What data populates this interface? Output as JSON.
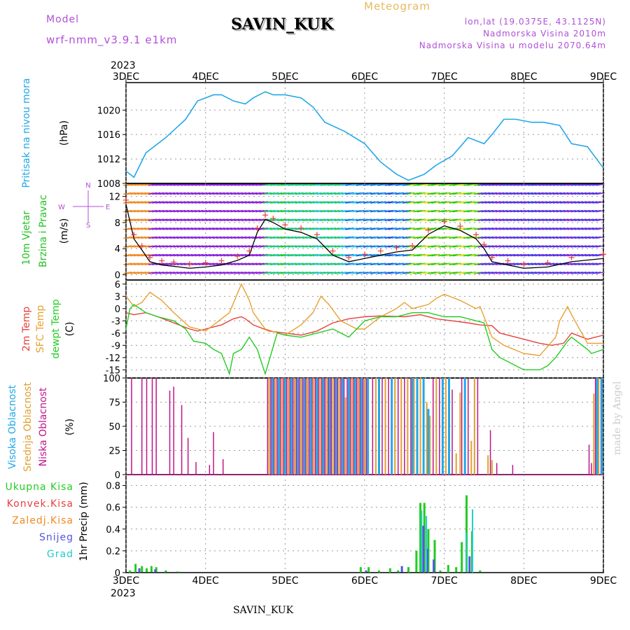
{
  "header": {
    "model_label": "Model",
    "model_name": "wrf-nmm_v3.9.1  e1km",
    "meteogram_label": "Meteogram",
    "station": "SAVIN_KUK",
    "lonlat": "lon,lat (19.0375E, 43.1125N)",
    "elevation": "Nadmorska Visina 2010m",
    "model_elevation": "Nadmorska Visina u modelu 2070.64m",
    "year": "2023"
  },
  "footer": {
    "station": "SAVIN_KUK",
    "credit": "made by Angel"
  },
  "colors": {
    "pressure": "#22a8e8",
    "wind_label": "#22c322",
    "temp2m": "#e8403a",
    "sfc": "#e8a030",
    "dew": "#22cc22",
    "high_cloud": "#22a8e8",
    "mid_cloud": "#e0a030",
    "low_cloud": "#c0158a",
    "model_label": "#b050d8",
    "meteogram_label": "#e8b860",
    "barb_purple": "#8a22d8",
    "barb_blue": "#2a44e8",
    "barb_cyan": "#22c8e0",
    "barb_green": "#22c822",
    "barb_yellow": "#e0e022",
    "barb_orange": "#f08a22",
    "snow": "#5555dd",
    "graupel": "#22cccc",
    "conv": "#e84040",
    "frz": "#f08a22",
    "credit": "#cccccc"
  },
  "chart_data": [
    {
      "type": "line",
      "panel": "pressure",
      "title": "",
      "ylabel_lines": [
        "Pritisak na nivou mora",
        "(hPa)"
      ],
      "x_ticks": [
        "3DEC",
        "4DEC",
        "5DEC",
        "6DEC",
        "7DEC",
        "8DEC",
        "9DEC"
      ],
      "x_range_days": [
        3,
        9
      ],
      "y_ticks": [
        "1008",
        "1012",
        "1016",
        "1020"
      ],
      "ylim": [
        1008,
        1024.5
      ],
      "grid": true,
      "series": [
        {
          "x": [
            3.0,
            3.1,
            3.25,
            3.5,
            3.75,
            3.9,
            4.0,
            4.1,
            4.2,
            4.35,
            4.5,
            4.6,
            4.75,
            4.85,
            5.0,
            5.2,
            5.35,
            5.5,
            5.75,
            6.0,
            6.2,
            6.4,
            6.55,
            6.75,
            6.9,
            7.1,
            7.3,
            7.5,
            7.6,
            7.75,
            7.9,
            8.1,
            8.25,
            8.45,
            8.6,
            8.8,
            9.0
          ],
          "y": [
            1010,
            1009,
            1013,
            1015.5,
            1018.5,
            1021.5,
            1022,
            1022.5,
            1022.5,
            1021.5,
            1021,
            1022,
            1023,
            1022.5,
            1022.5,
            1022,
            1020.5,
            1018,
            1016.5,
            1014.5,
            1011.5,
            1009.5,
            1008.5,
            1009.5,
            1011,
            1012.5,
            1015.5,
            1014.5,
            1016,
            1018.5,
            1018.5,
            1018,
            1018,
            1017.5,
            1014.5,
            1014,
            1010.5
          ]
        }
      ]
    },
    {
      "type": "line",
      "panel": "wind",
      "ylabel_lines": [
        "10m Vjetar",
        "Brzina i Pravac",
        "(m/s)"
      ],
      "compass": {
        "north": "N",
        "west": "W",
        "east": "E",
        "south": "S"
      },
      "y_ticks": [
        "0",
        "4",
        "8",
        "12"
      ],
      "ylim": [
        -0.8,
        14
      ],
      "series": [
        {
          "name": "speed",
          "x": [
            3.0,
            3.1,
            3.2,
            3.3,
            3.45,
            3.6,
            3.8,
            4.0,
            4.2,
            4.4,
            4.55,
            4.65,
            4.75,
            4.85,
            5.0,
            5.2,
            5.4,
            5.6,
            5.8,
            6.0,
            6.2,
            6.4,
            6.6,
            6.8,
            7.0,
            7.2,
            7.4,
            7.5,
            7.6,
            7.8,
            8.0,
            8.3,
            8.6,
            9.0
          ],
          "y": [
            10.8,
            5.5,
            3.8,
            2.0,
            1.5,
            1.3,
            1.0,
            1.2,
            1.5,
            2.2,
            3.0,
            6.5,
            8.5,
            8.0,
            7.0,
            6.5,
            5.5,
            3.0,
            2.0,
            2.5,
            3.0,
            3.5,
            3.8,
            6.2,
            7.5,
            6.8,
            5.5,
            4.0,
            2.0,
            1.5,
            1.0,
            1.2,
            2.0,
            2.5
          ]
        }
      ]
    },
    {
      "type": "line",
      "panel": "temperature",
      "ylabel_lines": [
        "2m Temp",
        "SFC Temp",
        "dewpt Temp",
        "(C)"
      ],
      "y_ticks": [
        "6",
        "3",
        "0",
        "-3",
        "-6",
        "-9",
        "-12",
        "-15"
      ],
      "ylim": [
        -17,
        7
      ],
      "series": [
        {
          "name": "2m Temp",
          "x": [
            3.0,
            3.1,
            3.25,
            3.4,
            3.6,
            3.8,
            3.9,
            4.0,
            4.1,
            4.2,
            4.35,
            4.45,
            4.5,
            4.6,
            4.8,
            5.0,
            5.2,
            5.4,
            5.6,
            5.8,
            6.0,
            6.2,
            6.5,
            6.7,
            6.9,
            7.1,
            7.3,
            7.45,
            7.6,
            7.7,
            7.9,
            8.0,
            8.2,
            8.35,
            8.5,
            8.6,
            8.8,
            9.0
          ],
          "y": [
            -1.0,
            -1.5,
            -1.0,
            -2.0,
            -3.5,
            -5.0,
            -5.5,
            -5.0,
            -4.5,
            -4.0,
            -2.5,
            -2.0,
            -2.5,
            -4.0,
            -5.5,
            -6.0,
            -6.5,
            -5.5,
            -3.5,
            -2.5,
            -2.0,
            -1.8,
            -2.0,
            -1.5,
            -2.5,
            -3.0,
            -3.5,
            -4.0,
            -4.2,
            -6.0,
            -7.0,
            -7.5,
            -8.5,
            -9.0,
            -8.5,
            -6.0,
            -7.5,
            -6.5
          ]
        },
        {
          "name": "SFC Temp",
          "x": [
            3.0,
            3.1,
            3.2,
            3.3,
            3.45,
            3.6,
            3.8,
            4.0,
            4.1,
            4.2,
            4.3,
            4.45,
            4.55,
            4.6,
            4.75,
            5.0,
            5.2,
            5.35,
            5.45,
            5.55,
            5.7,
            5.9,
            6.0,
            6.2,
            6.4,
            6.5,
            6.6,
            6.8,
            6.9,
            7.0,
            7.2,
            7.4,
            7.45,
            7.5,
            7.6,
            7.75,
            8.0,
            8.2,
            8.4,
            8.45,
            8.55,
            8.6,
            8.8,
            9.0
          ],
          "y": [
            3.0,
            0.5,
            1.5,
            4.0,
            2.0,
            -1.0,
            -4.5,
            -5.5,
            -4.0,
            -2.5,
            -1.0,
            6.0,
            2.0,
            -1.0,
            -5.0,
            -6.5,
            -4.0,
            -1.0,
            3.0,
            1.0,
            -3.0,
            -5.0,
            -5.0,
            -2.0,
            0.0,
            1.5,
            0.0,
            1.0,
            2.5,
            3.5,
            2.0,
            0.0,
            0.5,
            -2.0,
            -7.0,
            -9.0,
            -11.0,
            -11.5,
            -7.0,
            -3.0,
            0.5,
            -1.5,
            -8.5,
            -8.5
          ]
        },
        {
          "name": "dewpt Temp",
          "x": [
            3.0,
            3.05,
            3.1,
            3.25,
            3.4,
            3.6,
            3.75,
            3.85,
            4.0,
            4.1,
            4.2,
            4.3,
            4.35,
            4.45,
            4.55,
            4.65,
            4.75,
            4.9,
            5.0,
            5.2,
            5.4,
            5.6,
            5.8,
            6.0,
            6.2,
            6.4,
            6.6,
            6.8,
            7.0,
            7.2,
            7.4,
            7.5,
            7.6,
            7.7,
            7.9,
            8.0,
            8.2,
            8.3,
            8.4,
            8.55,
            8.6,
            8.8,
            8.85,
            9.0
          ],
          "y": [
            -5.0,
            0.0,
            1.0,
            -1.0,
            -2.0,
            -3.0,
            -5.0,
            -8.0,
            -8.5,
            -10.0,
            -11.0,
            -16.0,
            -11.0,
            -10.0,
            -7.0,
            -10.0,
            -16.0,
            -6.0,
            -6.5,
            -7.0,
            -6.0,
            -5.0,
            -7.0,
            -3.0,
            -2.0,
            -2.0,
            -1.0,
            -1.0,
            -2.0,
            -2.0,
            -3.0,
            -3.5,
            -10.0,
            -12.0,
            -14.0,
            -15.0,
            -15.0,
            -14.0,
            -12.0,
            -8.0,
            -7.0,
            -10.0,
            -11.0,
            -10.0
          ]
        }
      ]
    },
    {
      "type": "bar",
      "panel": "clouds",
      "ylabel_lines": [
        "Visoka Oblacnost",
        "Srednja Oblacnost",
        "Niska Oblacnost",
        "(%)"
      ],
      "y_ticks": [
        "0",
        "25",
        "50",
        "75",
        "100"
      ],
      "ylim": [
        0,
        100
      ],
      "series": [
        {
          "name": "Niska Oblacnost",
          "x": [
            3.07,
            3.2,
            3.26,
            3.33,
            3.38,
            3.55,
            3.6,
            3.7,
            3.78,
            3.88,
            4.05,
            4.1,
            4.22,
            4.78,
            4.82,
            4.86,
            4.9,
            4.94,
            4.98,
            5.02,
            5.06,
            5.1,
            5.14,
            5.18,
            5.22,
            5.26,
            5.3,
            5.34,
            5.38,
            5.42,
            5.46,
            5.5,
            5.54,
            5.58,
            5.62,
            5.66,
            5.7,
            5.74,
            5.78,
            5.82,
            5.86,
            5.9,
            5.94,
            5.98,
            6.02,
            6.1,
            6.22,
            6.3,
            6.42,
            6.5,
            6.58,
            6.66,
            6.74,
            6.86,
            6.94,
            7.1,
            7.22,
            7.3,
            7.42,
            7.58,
            7.66,
            7.86,
            8.82,
            8.85,
            8.9,
            8.97
          ],
          "y": [
            100,
            100,
            100,
            100,
            100,
            87,
            91,
            72,
            38,
            13,
            10,
            44,
            16,
            100,
            100,
            100,
            100,
            100,
            100,
            100,
            100,
            100,
            100,
            100,
            100,
            100,
            100,
            100,
            100,
            100,
            100,
            100,
            100,
            100,
            100,
            100,
            100,
            100,
            100,
            100,
            100,
            100,
            100,
            100,
            100,
            100,
            100,
            100,
            100,
            100,
            100,
            100,
            100,
            100,
            100,
            88,
            100,
            100,
            100,
            46,
            12,
            10,
            31,
            12,
            100,
            100
          ]
        },
        {
          "name": "Srednja Oblacnost",
          "x": [
            4.8,
            4.88,
            4.96,
            5.04,
            5.12,
            5.2,
            5.28,
            5.36,
            5.44,
            5.52,
            5.6,
            5.68,
            5.76,
            5.84,
            5.92,
            6.0,
            6.14,
            6.26,
            6.38,
            6.46,
            6.54,
            6.62,
            6.7,
            6.78,
            6.82,
            6.9,
            7.02,
            7.15,
            7.2,
            7.34,
            7.38,
            7.55,
            7.6,
            8.88,
            8.94
          ],
          "y": [
            100,
            100,
            100,
            100,
            100,
            100,
            100,
            100,
            100,
            100,
            100,
            100,
            80,
            100,
            100,
            100,
            100,
            100,
            100,
            100,
            100,
            100,
            100,
            75,
            61,
            100,
            100,
            22,
            85,
            35,
            100,
            20,
            15,
            84,
            100
          ]
        },
        {
          "name": "Visoka Oblacnost",
          "x": [
            4.84,
            4.92,
            5.0,
            5.08,
            5.16,
            5.24,
            5.32,
            5.4,
            5.48,
            5.56,
            5.64,
            5.72,
            5.8,
            5.88,
            5.96,
            6.04,
            6.18,
            6.34,
            6.6,
            6.66,
            6.74,
            6.8,
            6.98,
            7.06,
            7.26,
            8.92,
            8.98
          ],
          "y": [
            100,
            100,
            100,
            100,
            100,
            100,
            100,
            100,
            100,
            100,
            100,
            100,
            100,
            100,
            100,
            100,
            100,
            100,
            100,
            100,
            100,
            68,
            100,
            100,
            100,
            100,
            100
          ]
        }
      ]
    },
    {
      "type": "bar",
      "panel": "precip",
      "ylabel_lines": [
        "1hr Precip (mm)"
      ],
      "legend_labels": [
        "Ukupna Kisa",
        "Konvek.Kisa",
        "Zaledj.Kisa",
        "Snijeg",
        "Grad"
      ],
      "x_ticks": [
        "3DEC",
        "4DEC",
        "5DEC",
        "6DEC",
        "7DEC",
        "8DEC",
        "9DEC"
      ],
      "y_ticks": [
        "0",
        "0.2",
        "0.4",
        "0.6",
        "0.8"
      ],
      "ylim": [
        0,
        0.9
      ],
      "series": [
        {
          "name": "Ukupna Kisa",
          "x": [
            3.05,
            3.12,
            3.2,
            3.26,
            3.32,
            3.38,
            3.5,
            3.65,
            5.95,
            6.05,
            6.18,
            6.32,
            6.42,
            6.55,
            6.65,
            6.7,
            6.75,
            6.8,
            6.88,
            6.95,
            7.05,
            7.15,
            7.22,
            7.28,
            7.35,
            7.45
          ],
          "y": [
            0.02,
            0.08,
            0.06,
            0.04,
            0.06,
            0.05,
            0.02,
            0.01,
            0.05,
            0.05,
            0.02,
            0.04,
            0.02,
            0.05,
            0.2,
            0.64,
            0.64,
            0.4,
            0.3,
            0.02,
            0.07,
            0.05,
            0.28,
            0.71,
            0.38,
            0.02
          ]
        },
        {
          "name": "Snijeg",
          "x": [
            3.15,
            3.35,
            6.0,
            6.45,
            6.72,
            6.77,
            6.85,
            7.3
          ],
          "y": [
            0.04,
            0.03,
            0.02,
            0.06,
            0.43,
            0.22,
            0.12,
            0.15
          ]
        },
        {
          "name": "Grad",
          "x": [
            6.68,
            6.74,
            7.24,
            7.32
          ],
          "y": [
            0.57,
            0.52,
            0.37,
            0.58
          ]
        }
      ]
    }
  ]
}
